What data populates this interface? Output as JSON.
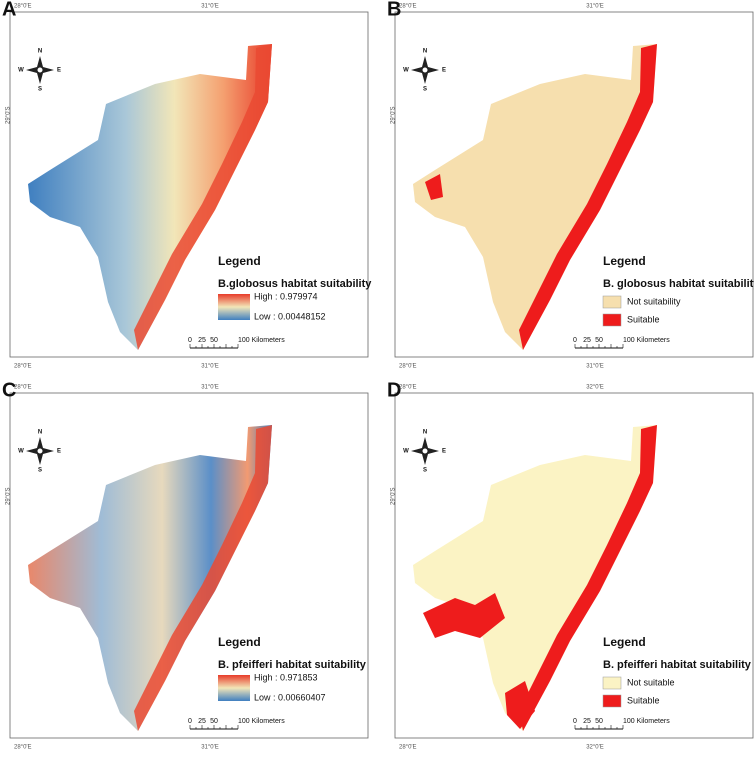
{
  "panels": [
    {
      "label": "A",
      "legend": {
        "heading": "Legend",
        "title": "B.globosus habitat suitability",
        "high": "High : 0.979974",
        "low": "Low : 0.00448152"
      },
      "scale": [
        "0",
        "25",
        "50",
        "100 Kilometers"
      ],
      "compass": [
        "N",
        "W",
        "E",
        "S"
      ],
      "coords": [
        "28°0'E",
        "31°0'E",
        "29°0'S",
        "28°0'E",
        "31°0'E"
      ]
    },
    {
      "label": "B",
      "legend": {
        "heading": "Legend",
        "title": "B. globosus habitat suitability",
        "items": [
          "Not suitability",
          "Suitable"
        ]
      },
      "scale": [
        "0",
        "25",
        "50",
        "100 Kilometers"
      ],
      "compass": [
        "N",
        "W",
        "E",
        "S"
      ],
      "coords": [
        "28°0'E",
        "31°0'E",
        "29°0'S",
        "28°0'E",
        "31°0'E"
      ]
    },
    {
      "label": "C",
      "legend": {
        "heading": "Legend",
        "title": "B. pfeifferi habitat suitability",
        "high": "High : 0.971853",
        "low": "Low : 0.00660407"
      },
      "scale": [
        "0",
        "25",
        "50",
        "100 Kilometers"
      ],
      "compass": [
        "N",
        "W",
        "E",
        "S"
      ],
      "coords": [
        "28°0'E",
        "31°0'E",
        "29°0'S",
        "28°0'E",
        "31°0'E"
      ]
    },
    {
      "label": "D",
      "legend": {
        "heading": "Legend",
        "title": "B. pfeifferi habitat suitability",
        "items": [
          "Not suitable",
          "Suitable"
        ]
      },
      "scale": [
        "0",
        "25",
        "50",
        "100 Kilometers"
      ],
      "compass": [
        "N",
        "W",
        "E",
        "S"
      ],
      "coords": [
        "28°0'E",
        "32°0'E",
        "29°0'S",
        "28°0'E",
        "32°0'E"
      ]
    }
  ]
}
